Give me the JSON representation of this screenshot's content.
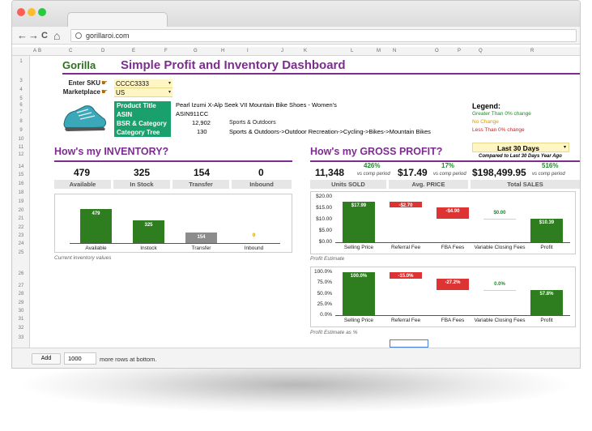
{
  "browser": {
    "url": "gorillaroi.com",
    "back_icon": "←",
    "forward_icon": "→",
    "reload_icon": "C",
    "home_icon": "⌂"
  },
  "sheet": {
    "col_headers": [
      "A",
      "B",
      "C",
      "D",
      "E",
      "F",
      "G",
      "H",
      "I",
      "J",
      "K",
      "L",
      "M",
      "N",
      "O",
      "P",
      "Q",
      "R"
    ],
    "row_numbers": [
      "1",
      "3",
      "4",
      "5",
      "6",
      "7",
      "8",
      "9",
      "10",
      "11",
      "12",
      "14",
      "15",
      "16",
      "18",
      "19",
      "20",
      "21",
      "22",
      "23",
      "24",
      "25",
      "26",
      "27",
      "28",
      "29",
      "30",
      "31",
      "32",
      "33"
    ]
  },
  "header": {
    "logo": "Gorilla",
    "title": "Simple Profit and Inventory Dashboard"
  },
  "inputs": {
    "sku_label": "Enter SKU",
    "sku_value": "CCCC3333",
    "marketplace_label": "Marketplace",
    "marketplace_value": "US"
  },
  "product": {
    "title_label": "Product Title",
    "title_value": "Pearl Izumi X-Alp Seek VII Mountain Bike Shoes - Women's",
    "asin_label": "ASIN",
    "asin_value": "ASIN911CC",
    "bsr_label": "BSR & Category",
    "bsr_value": "12,902",
    "bsr_category": "Sports & Outdoors",
    "tree_label": "Category Tree",
    "tree_value": "130",
    "tree_path": "Sports & Outdoors->Outdoor Recreation->Cycling->Bikes->Mountain Bikes"
  },
  "legend": {
    "title": "Legend:",
    "greater": "Greater Than 0% change",
    "nochange": "No Change",
    "less": "Less Than 0% change",
    "greater_color": "#1f8a2a",
    "nochange_color": "#d69a00",
    "less_color": "#cc2222"
  },
  "period": {
    "selected": "Last 30 Days",
    "compare": "Compared to Last 30 Days Year Ago"
  },
  "inventory": {
    "heading": "How's my INVENTORY?",
    "values": [
      "479",
      "325",
      "154",
      "0"
    ],
    "labels": [
      "Available",
      "In Stock",
      "Transfer",
      "Inbound"
    ],
    "note": "Current inventory values"
  },
  "profit": {
    "heading": "How's my GROSS PROFIT?",
    "units_value": "11,348",
    "units_pct": "426%",
    "units_label": "Units SOLD",
    "price_value": "$17.49",
    "price_pct": "17%",
    "price_label": "Avg. PRICE",
    "sales_value": "$198,499.95",
    "sales_pct": "516%",
    "sales_label": "Total SALES",
    "vs": "vs comp period",
    "note1": "Profit Estimate",
    "note2": "Profit Estimate as %"
  },
  "bottom": {
    "add_label": "Add",
    "rows_value": "1000",
    "more_text": "more rows at bottom."
  },
  "chart_data": [
    {
      "type": "bar",
      "categories": [
        "Available",
        "Instock",
        "Transfer",
        "Inbound"
      ],
      "values": [
        479,
        325,
        154,
        0
      ],
      "data_labels": [
        "479",
        "325",
        "154",
        "0"
      ],
      "colors": [
        "#2e7d1e",
        "#2e7d1e",
        "#8c8c8c",
        "#d69a00"
      ],
      "ylim": [
        0,
        600
      ]
    },
    {
      "type": "bar",
      "subtype": "waterfall",
      "categories": [
        "Selling Price",
        "Referral Fee",
        "FBA Fees",
        "Variable Closing Fees",
        "Profit"
      ],
      "values": [
        17.99,
        -2.7,
        -4.9,
        0.0,
        10.39
      ],
      "data_labels": [
        "$17.99",
        "-$2.70",
        "-$4.90",
        "$0.00",
        "$10.39"
      ],
      "yticks": [
        "$20.00",
        "$15.00",
        "$10.00",
        "$5.00",
        "$0.00"
      ],
      "ylim": [
        0,
        20
      ],
      "colors": {
        "positive": "#2e7d1e",
        "negative": "#dd3333",
        "zero": "#d0d0d0"
      }
    },
    {
      "type": "bar",
      "subtype": "waterfall",
      "categories": [
        "Selling Price",
        "Referral Fee",
        "FBA Fees",
        "Variable Closing Fees",
        "Profit"
      ],
      "values": [
        100.0,
        -15.0,
        -27.2,
        0.0,
        57.8
      ],
      "data_labels": [
        "100.0%",
        "-15.0%",
        "-27.2%",
        "0.0%",
        "57.8%"
      ],
      "yticks": [
        "100.0%",
        "75.0%",
        "50.0%",
        "25.0%",
        "0.0%"
      ],
      "ylim": [
        0,
        100
      ],
      "colors": {
        "positive": "#2e7d1e",
        "negative": "#dd3333",
        "zero": "#d0d0d0"
      }
    }
  ]
}
